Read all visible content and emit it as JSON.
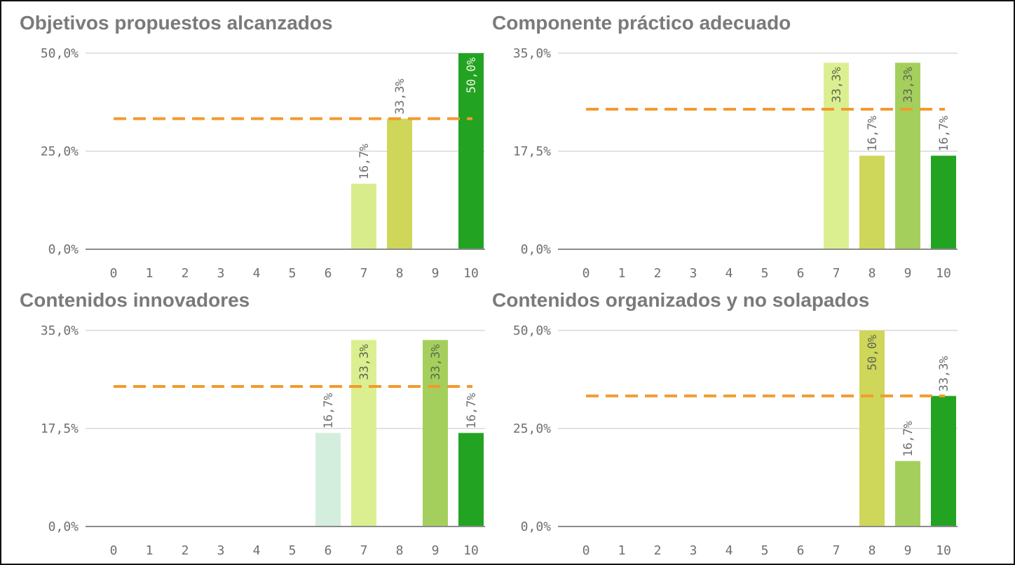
{
  "colors": {
    "title": "#7a7a7a",
    "tick": "#6f6f6f",
    "grid": "#d9d9d9",
    "axis": "#8c8c8c",
    "average_line": "#f29a2e",
    "label_outside": "#6f6f6f",
    "label_inside_light": "#eaf6e0",
    "label_inside_dark": "#5f6b4f"
  },
  "chart_data": [
    {
      "type": "bar",
      "title": "Objetivos propuestos alcanzados",
      "categories": [
        "0",
        "1",
        "2",
        "3",
        "4",
        "5",
        "6",
        "7",
        "8",
        "9",
        "10"
      ],
      "values": [
        0,
        0,
        0,
        0,
        0,
        0,
        0,
        16.7,
        33.3,
        0,
        50.0
      ],
      "value_labels": [
        "",
        "",
        "",
        "",
        "",
        "",
        "",
        "16,7%",
        "33,3%",
        "",
        "50,0%"
      ],
      "bar_colors": [
        "",
        "",
        "",
        "",
        "",
        "",
        "",
        "#d9ec8c",
        "#cfd75a",
        "",
        "#22a322"
      ],
      "ylim": [
        0,
        50
      ],
      "yticks": [
        0,
        25,
        50
      ],
      "ytick_labels": [
        "0,0%",
        "25,0%",
        "50,0%"
      ],
      "average_line": 33.3,
      "grid": true
    },
    {
      "type": "bar",
      "title": "Componente práctico adecuado",
      "categories": [
        "0",
        "1",
        "2",
        "3",
        "4",
        "5",
        "6",
        "7",
        "8",
        "9",
        "10"
      ],
      "values": [
        0,
        0,
        0,
        0,
        0,
        0,
        0,
        33.3,
        16.7,
        33.3,
        16.7
      ],
      "value_labels": [
        "",
        "",
        "",
        "",
        "",
        "",
        "",
        "33,3%",
        "16,7%",
        "33,3%",
        "16,7%"
      ],
      "bar_colors": [
        "",
        "",
        "",
        "",
        "",
        "",
        "",
        "#dcef90",
        "#cfd75a",
        "#a5cf5c",
        "#22a322"
      ],
      "ylim": [
        0,
        35
      ],
      "yticks": [
        0,
        17.5,
        35
      ],
      "ytick_labels": [
        "0,0%",
        "17,5%",
        "35,0%"
      ],
      "average_line": 25.0,
      "grid": true
    },
    {
      "type": "bar",
      "title": "Contenidos innovadores",
      "categories": [
        "0",
        "1",
        "2",
        "3",
        "4",
        "5",
        "6",
        "7",
        "8",
        "9",
        "10"
      ],
      "values": [
        0,
        0,
        0,
        0,
        0,
        0,
        16.7,
        33.3,
        0,
        33.3,
        16.7
      ],
      "value_labels": [
        "",
        "",
        "",
        "",
        "",
        "",
        "16,7%",
        "33,3%",
        "",
        "33,3%",
        "16,7%"
      ],
      "bar_colors": [
        "",
        "",
        "",
        "",
        "",
        "",
        "#d4eedd",
        "#dcef90",
        "",
        "#a5cf5c",
        "#22a322"
      ],
      "ylim": [
        0,
        35
      ],
      "yticks": [
        0,
        17.5,
        35
      ],
      "ytick_labels": [
        "0,0%",
        "17,5%",
        "35,0%"
      ],
      "average_line": 25.0,
      "grid": true
    },
    {
      "type": "bar",
      "title": "Contenidos organizados y no solapados",
      "categories": [
        "0",
        "1",
        "2",
        "3",
        "4",
        "5",
        "6",
        "7",
        "8",
        "9",
        "10"
      ],
      "values": [
        0,
        0,
        0,
        0,
        0,
        0,
        0,
        0,
        50.0,
        16.7,
        33.3
      ],
      "value_labels": [
        "",
        "",
        "",
        "",
        "",
        "",
        "",
        "",
        "50,0%",
        "16,7%",
        "33,3%"
      ],
      "bar_colors": [
        "",
        "",
        "",
        "",
        "",
        "",
        "",
        "",
        "#cfd75a",
        "#a5cf5c",
        "#22a322"
      ],
      "ylim": [
        0,
        50
      ],
      "yticks": [
        0,
        25,
        50
      ],
      "ytick_labels": [
        "0,0%",
        "25,0%",
        "50,0%"
      ],
      "average_line": 33.3,
      "grid": true
    }
  ]
}
